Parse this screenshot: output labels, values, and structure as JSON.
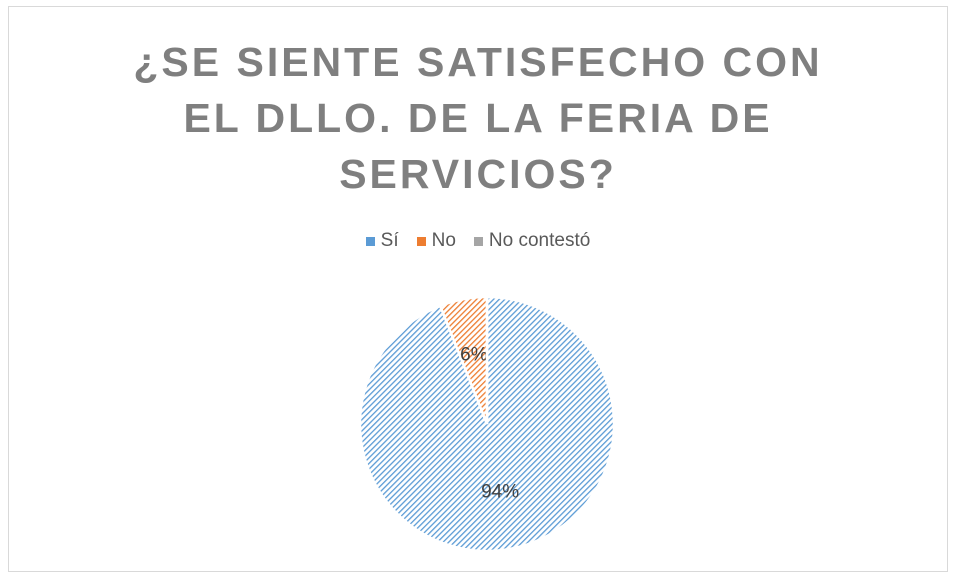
{
  "chart_data": {
    "type": "pie",
    "title": "¿SE SIENTE SATISFECHO CON EL DLLO. DE LA FERIA DE SERVICIOS?",
    "categories": [
      "Sí",
      "No",
      "No contestó"
    ],
    "values": [
      94,
      6,
      0
    ],
    "value_labels": [
      "94%",
      "6%",
      null
    ],
    "colors": [
      "#5b9bd5",
      "#ed7d31",
      "#a5a5a5"
    ],
    "legend": "top"
  }
}
